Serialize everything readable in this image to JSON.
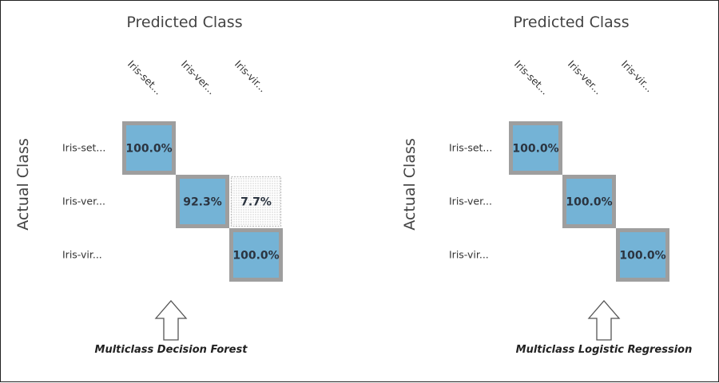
{
  "chart_data": [
    {
      "type": "heatmap",
      "title": "Predicted Class",
      "ylabel": "Actual Class",
      "x_categories": [
        "Iris-set...",
        "Iris-ver...",
        "Iris-vir..."
      ],
      "y_categories": [
        "Iris-set...",
        "Iris-ver...",
        "Iris-vir..."
      ],
      "cells": [
        {
          "row": 0,
          "col": 0,
          "label": "100.0%",
          "value": 100.0
        },
        {
          "row": 1,
          "col": 1,
          "label": "92.3%",
          "value": 92.3
        },
        {
          "row": 1,
          "col": 2,
          "label": "7.7%",
          "value": 7.7
        },
        {
          "row": 2,
          "col": 2,
          "label": "100.0%",
          "value": 100.0
        }
      ],
      "caption": "Multiclass Decision Forest"
    },
    {
      "type": "heatmap",
      "title": "Predicted Class",
      "ylabel": "Actual Class",
      "x_categories": [
        "Iris-set...",
        "Iris-ver...",
        "Iris-vir..."
      ],
      "y_categories": [
        "Iris-set...",
        "Iris-ver...",
        "Iris-vir..."
      ],
      "cells": [
        {
          "row": 0,
          "col": 0,
          "label": "100.0%",
          "value": 100.0
        },
        {
          "row": 1,
          "col": 1,
          "label": "100.0%",
          "value": 100.0
        },
        {
          "row": 2,
          "col": 2,
          "label": "100.0%",
          "value": 100.0
        }
      ],
      "caption": "Multiclass Logistic Regression"
    }
  ],
  "colors": {
    "high_cell": "#74b3d6",
    "cell_border": "#9e9e9e",
    "low_cell_dots": "#9a9a9a",
    "text": "#2b3440"
  },
  "icons": [
    "up-arrow-icon"
  ]
}
